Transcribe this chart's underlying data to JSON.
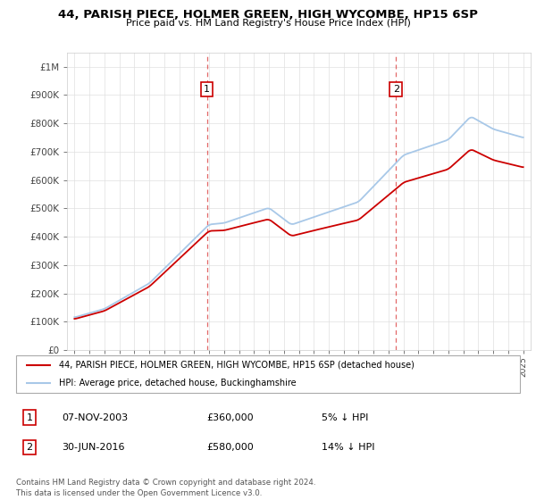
{
  "title": "44, PARISH PIECE, HOLMER GREEN, HIGH WYCOMBE, HP15 6SP",
  "subtitle": "Price paid vs. HM Land Registry's House Price Index (HPI)",
  "ylabel_ticks": [
    "£0",
    "£100K",
    "£200K",
    "£300K",
    "£400K",
    "£500K",
    "£600K",
    "£700K",
    "£800K",
    "£900K",
    "£1M"
  ],
  "ytick_vals": [
    0,
    100000,
    200000,
    300000,
    400000,
    500000,
    600000,
    700000,
    800000,
    900000,
    1000000
  ],
  "ylim": [
    0,
    1050000
  ],
  "xlim_start": 1994.5,
  "xlim_end": 2025.5,
  "hpi_color": "#a8c8e8",
  "price_color": "#cc0000",
  "marker1_date": 2003.85,
  "marker2_date": 2016.5,
  "legend_line1": "44, PARISH PIECE, HOLMER GREEN, HIGH WYCOMBE, HP15 6SP (detached house)",
  "legend_line2": "HPI: Average price, detached house, Buckinghamshire",
  "table_row1": [
    "1",
    "07-NOV-2003",
    "£360,000",
    "5% ↓ HPI"
  ],
  "table_row2": [
    "2",
    "30-JUN-2016",
    "£580,000",
    "14% ↓ HPI"
  ],
  "footer": "Contains HM Land Registry data © Crown copyright and database right 2024.\nThis data is licensed under the Open Government Licence v3.0.",
  "grid_color": "#e0e0e0",
  "xtick_years": [
    1995,
    1996,
    1997,
    1998,
    1999,
    2000,
    2001,
    2002,
    2003,
    2004,
    2005,
    2006,
    2007,
    2008,
    2009,
    2010,
    2011,
    2012,
    2013,
    2014,
    2015,
    2016,
    2017,
    2018,
    2019,
    2020,
    2021,
    2022,
    2023,
    2024,
    2025
  ]
}
